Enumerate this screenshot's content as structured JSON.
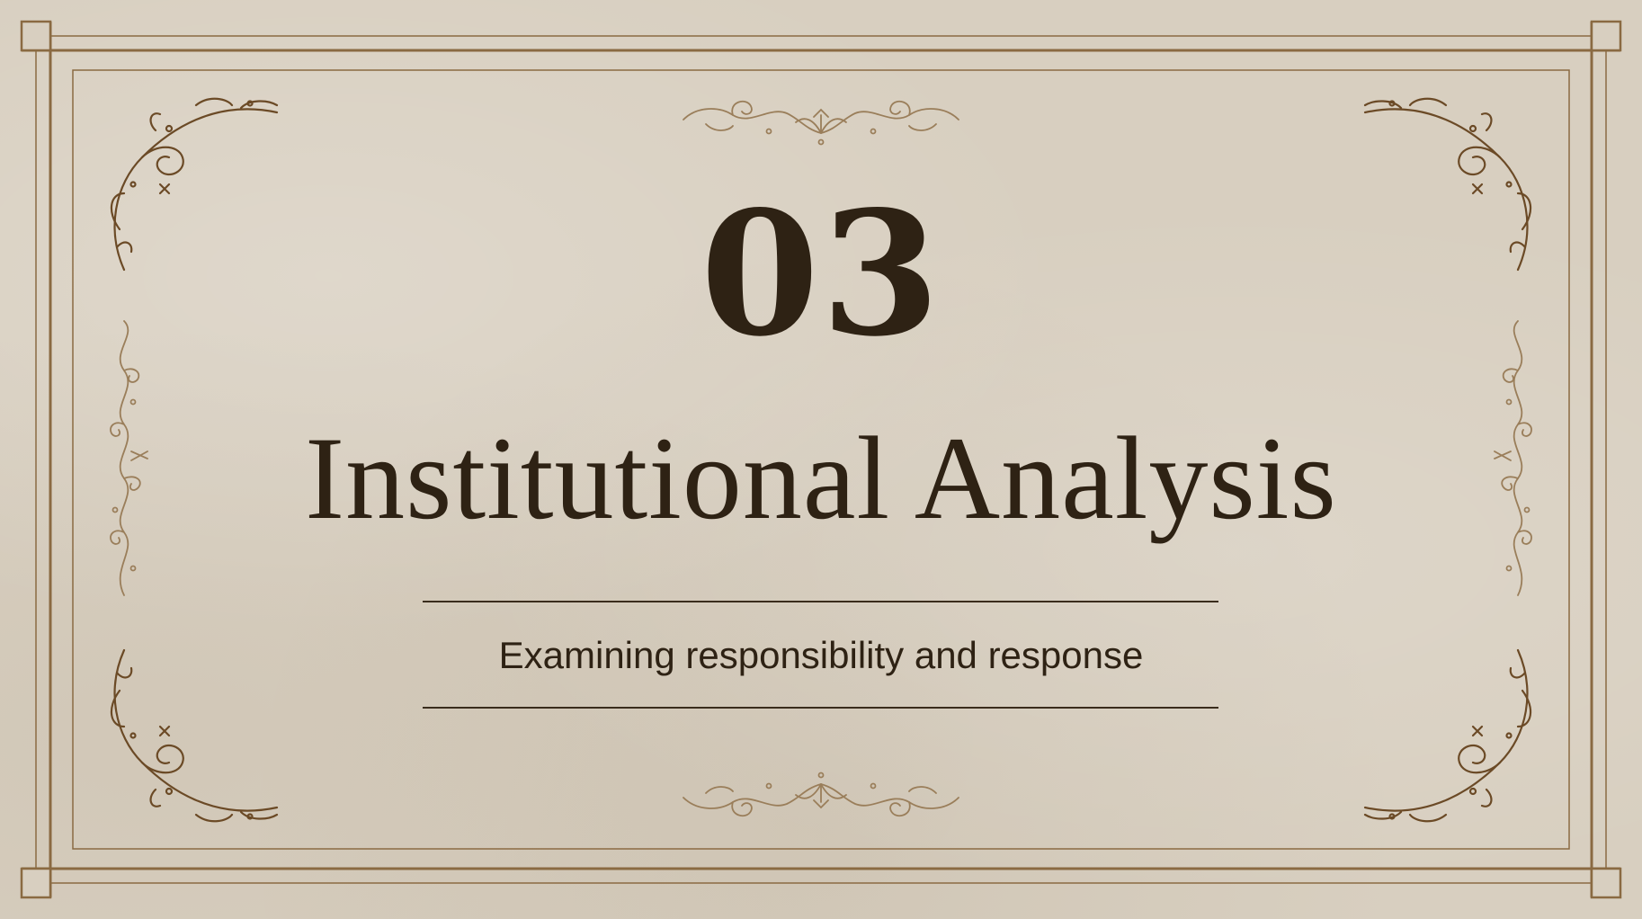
{
  "slide": {
    "section_number": "03",
    "title": "Institutional Analysis",
    "subtitle": "Examining responsibility and response"
  },
  "colors": {
    "background": "#d8cfc0",
    "frame": "#8a6a42",
    "ornament": "#6b4a26",
    "text": "#2e2214"
  },
  "ornaments": {
    "corners": "flourish-corner-icon",
    "sides": "flourish-vertical-icon",
    "center": "flourish-horizontal-icon"
  }
}
